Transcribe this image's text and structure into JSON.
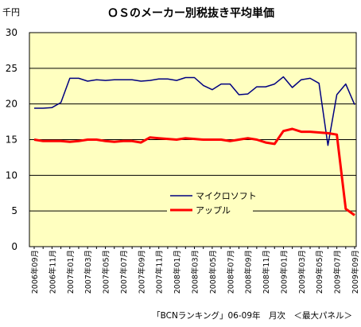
{
  "chart_data": {
    "type": "line",
    "title": "ＯＳのメーカー別税抜き平均単価",
    "ylabel": "千円",
    "ylim": [
      0,
      30
    ],
    "yticks": [
      0,
      5,
      10,
      15,
      20,
      25,
      30
    ],
    "grid": true,
    "legend_position": "center",
    "footnote": "「BCNランキング」06-09年　月次　＜最大パネル＞",
    "x_labels": [
      "2006年09月",
      "2006年11月",
      "2007年01月",
      "2007年03月",
      "2007年05月",
      "2007年07月",
      "2007年09月",
      "2007年11月",
      "2008年01月",
      "2008年03月",
      "2008年05月",
      "2008年07月",
      "2008年09月",
      "2008年11月",
      "2009年01月",
      "2009年03月",
      "2009年05月",
      "2009年07月",
      "2009年09月"
    ],
    "series": [
      {
        "name": "マイクロソフト",
        "color": "#000080",
        "values": [
          19.4,
          19.4,
          19.5,
          20.2,
          23.6,
          23.6,
          23.2,
          23.4,
          23.3,
          23.4,
          23.4,
          23.4,
          23.2,
          23.3,
          23.5,
          23.5,
          23.3,
          23.7,
          23.7,
          22.6,
          22.0,
          22.8,
          22.8,
          21.3,
          21.4,
          22.4,
          22.4,
          22.8,
          23.8,
          22.3,
          23.4,
          23.6,
          22.9,
          14.2,
          21.3,
          22.8,
          19.9
        ]
      },
      {
        "name": "アップル",
        "color": "#ff0000",
        "values": [
          15.0,
          14.8,
          14.8,
          14.8,
          14.7,
          14.8,
          15.0,
          15.0,
          14.8,
          14.7,
          14.8,
          14.8,
          14.6,
          15.3,
          15.2,
          15.1,
          15.0,
          15.2,
          15.1,
          15.0,
          15.0,
          15.0,
          14.8,
          15.0,
          15.2,
          15.0,
          14.6,
          14.4,
          16.2,
          16.5,
          16.1,
          16.1,
          16.0,
          15.9,
          15.7,
          5.3,
          4.4
        ]
      }
    ]
  }
}
